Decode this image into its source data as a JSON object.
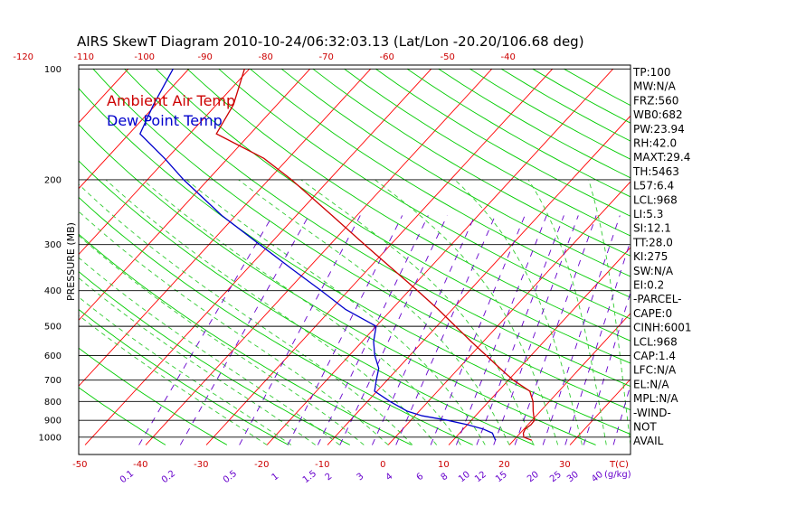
{
  "title": "AIRS SkewT Diagram 2010-10-24/06:32:03.13 (Lat/Lon -20.20/106.68 deg)",
  "chart_data": {
    "type": "line",
    "title": "AIRS SkewT Diagram 2010-10-24/06:32:03.13 (Lat/Lon -20.20/106.68 deg)",
    "ylabel": "PRESSURE (MB)",
    "xlabel": "T(C)",
    "y_scale": "log",
    "ylim": [
      1050,
      100
    ],
    "pressure_ticks": [
      100,
      200,
      300,
      400,
      500,
      600,
      700,
      800,
      900,
      1000
    ],
    "top_temp_ticks": [
      -120,
      -110,
      -100,
      -90,
      -80,
      -70,
      -60,
      -50,
      -40
    ],
    "bottom_temp_ticks": [
      -50,
      -40,
      -30,
      -20,
      -10,
      0,
      10,
      20,
      30
    ],
    "bottom_axis_unit": "T(C)",
    "mixing_ratio_ticks": [
      "0.1",
      "0.2",
      "0.5",
      "1",
      "1.5",
      "2",
      "3",
      "4",
      "6",
      "8",
      "10",
      "12",
      "15",
      "20",
      "25",
      "30",
      "40"
    ],
    "mixing_ratio_unit": "(g/kg)",
    "legend": [
      "Ambient Air Temp",
      "Dew Point Temp"
    ],
    "legend_placement": "top-left",
    "series": [
      {
        "name": "Ambient Air Temp",
        "color": "#cc0000",
        "points": [
          {
            "p": 1020,
            "t": 23.0
          },
          {
            "p": 1000,
            "t": 21.2
          },
          {
            "p": 975,
            "t": 20.5
          },
          {
            "p": 950,
            "t": 20.2
          },
          {
            "p": 925,
            "t": 20.5
          },
          {
            "p": 900,
            "t": 20.4
          },
          {
            "p": 875,
            "t": 19.6
          },
          {
            "p": 850,
            "t": 18.8
          },
          {
            "p": 800,
            "t": 17.3
          },
          {
            "p": 750,
            "t": 15.2
          },
          {
            "p": 700,
            "t": 10.8
          },
          {
            "p": 650,
            "t": 6.8
          },
          {
            "p": 600,
            "t": 2.6
          },
          {
            "p": 550,
            "t": -2.0
          },
          {
            "p": 500,
            "t": -6.9
          },
          {
            "p": 450,
            "t": -12.3
          },
          {
            "p": 400,
            "t": -18.6
          },
          {
            "p": 350,
            "t": -25.9
          },
          {
            "p": 300,
            "t": -34.3
          },
          {
            "p": 250,
            "t": -44.1
          },
          {
            "p": 200,
            "t": -56.2
          },
          {
            "p": 175,
            "t": -64.0
          },
          {
            "p": 150,
            "t": -75.6
          },
          {
            "p": 125,
            "t": -77.2
          },
          {
            "p": 100,
            "t": -80.8
          }
        ]
      },
      {
        "name": "Dew Point Temp",
        "color": "#0000cc",
        "points": [
          {
            "p": 1020,
            "t": 17.0
          },
          {
            "p": 1000,
            "t": 16.3
          },
          {
            "p": 975,
            "t": 15.4
          },
          {
            "p": 950,
            "t": 13.2
          },
          {
            "p": 925,
            "t": 10.0
          },
          {
            "p": 900,
            "t": 6.1
          },
          {
            "p": 875,
            "t": 1.2
          },
          {
            "p": 850,
            "t": -2.0
          },
          {
            "p": 800,
            "t": -6.3
          },
          {
            "p": 750,
            "t": -10.4
          },
          {
            "p": 700,
            "t": -11.8
          },
          {
            "p": 650,
            "t": -13.2
          },
          {
            "p": 600,
            "t": -15.8
          },
          {
            "p": 550,
            "t": -18.1
          },
          {
            "p": 500,
            "t": -20.0
          },
          {
            "p": 450,
            "t": -27.6
          },
          {
            "p": 400,
            "t": -34.5
          },
          {
            "p": 350,
            "t": -42.5
          },
          {
            "p": 300,
            "t": -51.6
          },
          {
            "p": 250,
            "t": -62.3
          },
          {
            "p": 200,
            "t": -74.0
          },
          {
            "p": 175,
            "t": -80.4
          },
          {
            "p": 150,
            "t": -88.2
          },
          {
            "p": 125,
            "t": -90.4
          },
          {
            "p": 100,
            "t": -92.6
          }
        ]
      }
    ],
    "indices": [
      "TP:100",
      "MW:N/A",
      "FRZ:560",
      "WB0:682",
      "PW:23.94",
      "RH:42.0",
      "MAXT:29.4",
      "TH:5463",
      "L57:6.4",
      "LCL:968",
      "LI:5.3",
      "SI:12.1",
      "TT:28.0",
      "KI:275",
      "SW:N/A",
      "EI:0.2",
      "-PARCEL-",
      "CAPE:0",
      "CINH:6001",
      "LCL:968",
      "CAP:1.4",
      "LFC:N/A",
      "EL:N/A",
      "MPL:N/A",
      "-WIND-",
      "NOT",
      "AVAIL"
    ],
    "colors": {
      "isotherm": "#ff0000",
      "dry_adiabat": "#00cc00",
      "moist_adiabat": "#33cc33",
      "mixing_ratio": "#6600cc",
      "isobar": "#000000",
      "temperature": "#cc0000",
      "dewpoint": "#0000cc",
      "axis_text": "#cc0000",
      "mixing_text": "#6600cc"
    },
    "grid": true
  }
}
